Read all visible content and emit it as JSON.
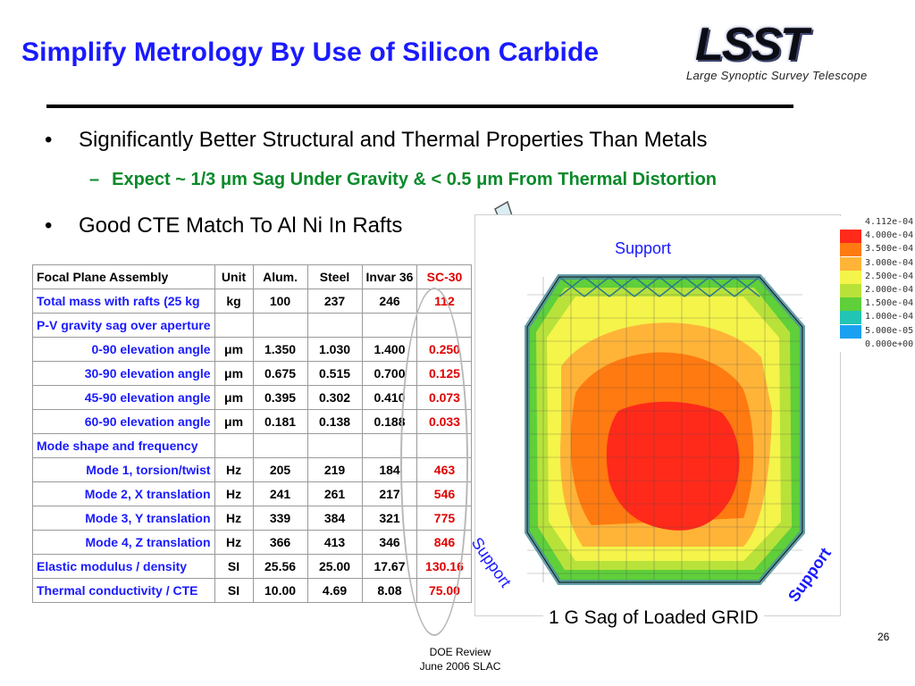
{
  "slide": {
    "title": "Simplify Metrology By Use of Silicon Carbide",
    "page_number": "26",
    "footer_line1": "DOE  Review",
    "footer_line2": "June 2006 SLAC"
  },
  "logo": {
    "letters": "LSST",
    "subtitle": "Large  Synoptic  Survey  Telescope"
  },
  "bullets": {
    "b1": "Significantly Better Structural and Thermal Properties Than Metals",
    "b1_sub": "Expect ~ 1/3 μm Sag Under Gravity & < 0.5 μm From Thermal Distortion",
    "b2": "Good CTE  Match To Al Ni In Rafts",
    "marker": "•",
    "sub_marker": "–"
  },
  "table": {
    "headers": [
      "Focal Plane Assembly",
      "Unit",
      "Alum.",
      "Steel",
      "Invar 36",
      "SC-30"
    ],
    "rows": [
      {
        "label": "Total mass with rafts (25 kg",
        "unit": "kg",
        "alum": "100",
        "steel": "237",
        "invar": "246",
        "sic": "112",
        "indent": false
      },
      {
        "label": "P-V gravity sag over aperture",
        "unit": "",
        "alum": "",
        "steel": "",
        "invar": "",
        "sic": "",
        "indent": false
      },
      {
        "label": "0-90 elevation angle",
        "unit": "μm",
        "alum": "1.350",
        "steel": "1.030",
        "invar": "1.400",
        "sic": "0.250",
        "indent": true
      },
      {
        "label": "30-90 elevation angle",
        "unit": "μm",
        "alum": "0.675",
        "steel": "0.515",
        "invar": "0.700",
        "sic": "0.125",
        "indent": true
      },
      {
        "label": "45-90 elevation angle",
        "unit": "μm",
        "alum": "0.395",
        "steel": "0.302",
        "invar": "0.410",
        "sic": "0.073",
        "indent": true
      },
      {
        "label": "60-90 elevation angle",
        "unit": "μm",
        "alum": "0.181",
        "steel": "0.138",
        "invar": "0.188",
        "sic": "0.033",
        "indent": true
      },
      {
        "label": "Mode shape and frequency",
        "unit": "",
        "alum": "",
        "steel": "",
        "invar": "",
        "sic": "",
        "indent": false
      },
      {
        "label": "Mode 1, torsion/twist",
        "unit": "Hz",
        "alum": "205",
        "steel": "219",
        "invar": "184",
        "sic": "463",
        "indent": true
      },
      {
        "label": "Mode 2, X translation",
        "unit": "Hz",
        "alum": "241",
        "steel": "261",
        "invar": "217",
        "sic": "546",
        "indent": true
      },
      {
        "label": "Mode 3, Y translation",
        "unit": "Hz",
        "alum": "339",
        "steel": "384",
        "invar": "321",
        "sic": "775",
        "indent": true
      },
      {
        "label": "Mode 4, Z translation",
        "unit": "Hz",
        "alum": "366",
        "steel": "413",
        "invar": "346",
        "sic": "846",
        "indent": true
      },
      {
        "label": "Elastic modulus / density",
        "unit": "SI",
        "alum": "25.56",
        "steel": "25.00",
        "invar": "17.67",
        "sic": "130.16",
        "indent": false
      },
      {
        "label": "Thermal conductivity / CTE",
        "unit": "SI",
        "alum": "10.00",
        "steel": "4.69",
        "invar": "8.08",
        "sic": "75.00",
        "indent": false
      }
    ]
  },
  "figure": {
    "support_top": "Support",
    "support_left": "Support",
    "support_right": "Support",
    "caption": "1 G Sag of Loaded GRID",
    "legend": [
      {
        "label": "4.112e-04",
        "color": "#ffffff"
      },
      {
        "label": "4.000e-04",
        "color": "#ff2a1a"
      },
      {
        "label": "3.500e-04",
        "color": "#ff7a10"
      },
      {
        "label": "3.000e-04",
        "color": "#ffb438"
      },
      {
        "label": "2.500e-04",
        "color": "#f4f44a"
      },
      {
        "label": "2.000e-04",
        "color": "#b8e23a"
      },
      {
        "label": "1.500e-04",
        "color": "#5fcf3a"
      },
      {
        "label": "1.000e-04",
        "color": "#22c4b4"
      },
      {
        "label": "5.000e-05",
        "color": "#1aa0f0"
      },
      {
        "label": "0.000e+00",
        "color": "#ffffff"
      }
    ]
  }
}
